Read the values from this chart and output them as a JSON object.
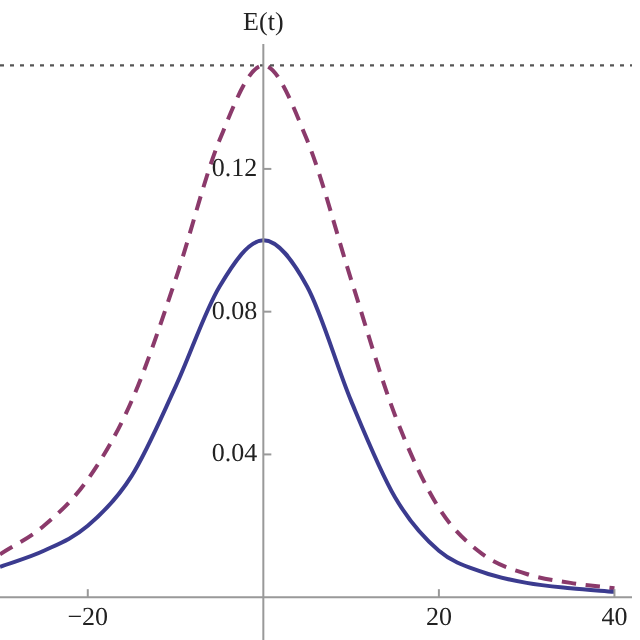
{
  "chart_data": {
    "type": "line",
    "ylabel": "E(t)",
    "x": [
      -30,
      -25,
      -20,
      -15,
      -10,
      -5,
      0,
      5,
      10,
      15,
      20,
      25,
      30,
      35,
      40
    ],
    "series": [
      {
        "color": "#3b3b8f",
        "line_style": "solid",
        "values": [
          0.0085,
          0.013,
          0.02,
          0.034,
          0.059,
          0.087,
          0.1,
          0.087,
          0.055,
          0.028,
          0.013,
          0.007,
          0.004,
          0.0025,
          0.0015
        ]
      },
      {
        "color": "#8b3a6b",
        "line_style": "dashed",
        "values": [
          0.012,
          0.02,
          0.033,
          0.055,
          0.089,
          0.128,
          0.149,
          0.128,
          0.089,
          0.051,
          0.025,
          0.012,
          0.0065,
          0.004,
          0.0025
        ]
      }
    ],
    "xlim": [
      -30,
      42
    ],
    "ylim": [
      -0.012,
      0.155
    ],
    "xticks": [
      {
        "value": -20,
        "label": "−20"
      },
      20,
      40
    ],
    "yticks": [
      0.04,
      0.08,
      0.12
    ],
    "ref_lines": [
      {
        "axis": "y",
        "value": 0.149,
        "color": "#555555",
        "line_style": "dotted"
      }
    ]
  }
}
